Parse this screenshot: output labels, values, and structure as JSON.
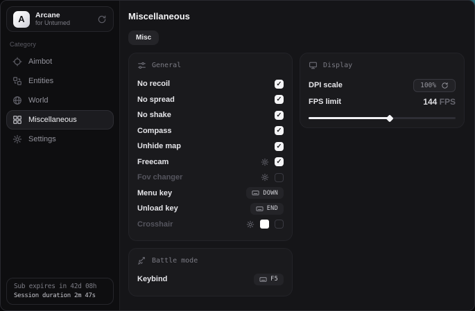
{
  "sidebar": {
    "app": {
      "logo_letter": "A",
      "name": "Arcane",
      "subtitle": "for Unturned"
    },
    "category_label": "Category",
    "items": [
      {
        "label": "Aimbot",
        "icon": "crosshair-icon",
        "active": false
      },
      {
        "label": "Entities",
        "icon": "entities-icon",
        "active": false
      },
      {
        "label": "World",
        "icon": "globe-icon",
        "active": false
      },
      {
        "label": "Miscellaneous",
        "icon": "grid-icon",
        "active": true
      },
      {
        "label": "Settings",
        "icon": "gear-icon",
        "active": false
      }
    ],
    "footer": {
      "line1": "Sub expires in 42d 08h",
      "line2": "Session duration 2m 47s"
    }
  },
  "main": {
    "title": "Miscellaneous",
    "tabs": [
      {
        "label": "Misc",
        "active": true
      }
    ],
    "panels": {
      "general": {
        "title": "General",
        "rows": [
          {
            "label": "No recoil",
            "control": "checkbox",
            "checked": true
          },
          {
            "label": "No spread",
            "control": "checkbox",
            "checked": true
          },
          {
            "label": "No shake",
            "control": "checkbox",
            "checked": true
          },
          {
            "label": "Compass",
            "control": "checkbox",
            "checked": true
          },
          {
            "label": "Unhide map",
            "control": "checkbox",
            "checked": true
          },
          {
            "label": "Freecam",
            "control": "gear+checkbox",
            "checked": true
          },
          {
            "label": "Fov changer",
            "control": "gear+checkbox",
            "checked": false
          },
          {
            "label": "Menu key",
            "control": "keybind",
            "key": "DOWN"
          },
          {
            "label": "Unload key",
            "control": "keybind",
            "key": "END"
          },
          {
            "label": "Crosshair",
            "control": "gear+color+checkbox",
            "checked": false,
            "color": "#ffffff"
          }
        ]
      },
      "battle_mode": {
        "title": "Battle mode",
        "rows": [
          {
            "label": "Keybind",
            "control": "keybind",
            "key": "F5"
          }
        ]
      },
      "display": {
        "title": "Display",
        "dpi": {
          "label": "DPI scale",
          "value": "100%"
        },
        "fps": {
          "label": "FPS limit",
          "value": "144",
          "unit": "FPS",
          "percent": 55
        }
      }
    }
  },
  "colors": {
    "panel_bg": "#1a1a1d",
    "sidebar_bg": "#0e0e10",
    "main_bg": "#151518",
    "checkbox_checked": "#f4f4f6",
    "slider_fill": "#f1f1f4",
    "corner_accent": "#2f7d8c"
  }
}
